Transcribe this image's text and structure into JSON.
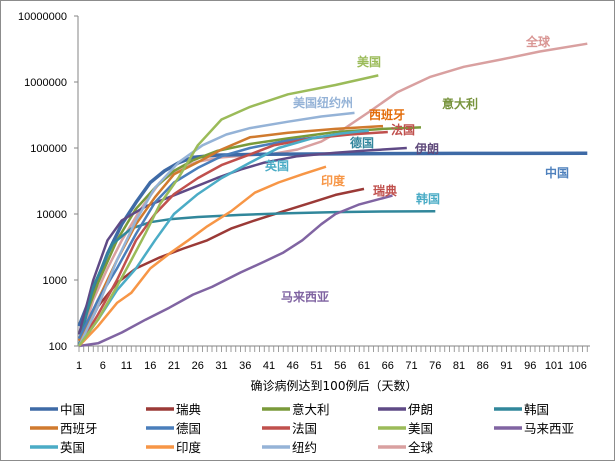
{
  "chart_data": {
    "type": "line",
    "title": "",
    "xlabel": "确诊病例达到100例后（天数）",
    "ylabel": "",
    "yscale": "log",
    "ylim": [
      100,
      10000000
    ],
    "xlim": [
      1,
      108
    ],
    "y_ticks": [
      "100",
      "1000",
      "10000",
      "100000",
      "1000000",
      "10000000"
    ],
    "y_tick_values": [
      100,
      1000,
      10000,
      100000,
      1000000,
      10000000
    ],
    "x_ticks": [
      "1",
      "6",
      "11",
      "16",
      "21",
      "26",
      "31",
      "36",
      "41",
      "46",
      "51",
      "56",
      "61",
      "66",
      "71",
      "76",
      "81",
      "86",
      "91",
      "96",
      "101",
      "106"
    ],
    "legend_position": "bottom",
    "series": [
      {
        "name": "中国",
        "label": "中国",
        "color": "#3E6AA6",
        "label_color": "#4F81BD",
        "points": [
          [
            1,
            200
          ],
          [
            4,
            700
          ],
          [
            7,
            2500
          ],
          [
            10,
            7000
          ],
          [
            13,
            15000
          ],
          [
            16,
            30000
          ],
          [
            19,
            45000
          ],
          [
            22,
            60000
          ],
          [
            25,
            72000
          ],
          [
            30,
            78000
          ],
          [
            40,
            80500
          ],
          [
            60,
            82000
          ],
          [
            80,
            82800
          ],
          [
            108,
            83000
          ]
        ]
      },
      {
        "name": "瑞典",
        "label": "瑞典",
        "color": "#9B3A37",
        "label_color": "#C0504D",
        "points": [
          [
            1,
            100
          ],
          [
            5,
            400
          ],
          [
            9,
            900
          ],
          [
            13,
            1500
          ],
          [
            18,
            2200
          ],
          [
            23,
            3000
          ],
          [
            28,
            4000
          ],
          [
            33,
            6000
          ],
          [
            38,
            8000
          ],
          [
            44,
            11000
          ],
          [
            50,
            15000
          ],
          [
            55,
            19500
          ],
          [
            61,
            24000
          ]
        ]
      },
      {
        "name": "意大利",
        "label": "意大利",
        "color": "#7A9A3A",
        "label_color": "#77933C",
        "points": [
          [
            1,
            150
          ],
          [
            5,
            900
          ],
          [
            9,
            4000
          ],
          [
            13,
            12000
          ],
          [
            17,
            25000
          ],
          [
            21,
            45000
          ],
          [
            25,
            65000
          ],
          [
            30,
            90000
          ],
          [
            37,
            115000
          ],
          [
            45,
            140000
          ],
          [
            55,
            175000
          ],
          [
            65,
            195000
          ],
          [
            73,
            205000
          ]
        ]
      },
      {
        "name": "伊朗",
        "label": "伊朗",
        "color": "#5F4A86",
        "label_color": "#604A7B",
        "points": [
          [
            1,
            150
          ],
          [
            4,
            1000
          ],
          [
            7,
            4000
          ],
          [
            10,
            8000
          ],
          [
            15,
            13000
          ],
          [
            20,
            18000
          ],
          [
            25,
            25000
          ],
          [
            30,
            35000
          ],
          [
            35,
            47000
          ],
          [
            40,
            60000
          ],
          [
            47,
            75000
          ],
          [
            55,
            85000
          ],
          [
            62,
            92000
          ],
          [
            70,
            100000
          ]
        ]
      },
      {
        "name": "韩国",
        "label": "韩国",
        "color": "#31879B",
        "label_color": "#4BACC6",
        "points": [
          [
            1,
            100
          ],
          [
            4,
            800
          ],
          [
            8,
            3500
          ],
          [
            12,
            6000
          ],
          [
            16,
            7500
          ],
          [
            20,
            8300
          ],
          [
            26,
            9000
          ],
          [
            35,
            9700
          ],
          [
            45,
            10300
          ],
          [
            55,
            10700
          ],
          [
            65,
            10900
          ],
          [
            76,
            11000
          ]
        ]
      },
      {
        "name": "西班牙",
        "label": "西班牙",
        "color": "#D07A2E",
        "label_color": "#E36C09",
        "points": [
          [
            1,
            120
          ],
          [
            5,
            500
          ],
          [
            9,
            2000
          ],
          [
            13,
            7000
          ],
          [
            17,
            18000
          ],
          [
            21,
            40000
          ],
          [
            26,
            61000
          ],
          [
            31,
            95000
          ],
          [
            37,
            145000
          ],
          [
            45,
            170000
          ],
          [
            55,
            195000
          ],
          [
            65,
            215000
          ]
        ]
      },
      {
        "name": "德国",
        "label": "德国",
        "color": "#4A7EBB",
        "label_color": "#31859C",
        "points": [
          [
            1,
            130
          ],
          [
            5,
            500
          ],
          [
            9,
            1500
          ],
          [
            13,
            5000
          ],
          [
            17,
            15000
          ],
          [
            21,
            30000
          ],
          [
            26,
            50000
          ],
          [
            31,
            75000
          ],
          [
            37,
            100000
          ],
          [
            45,
            130000
          ],
          [
            55,
            155000
          ],
          [
            62,
            170000
          ]
        ]
      },
      {
        "name": "法国",
        "label": "法国",
        "color": "#C0504D",
        "label_color": "#C0504D",
        "points": [
          [
            1,
            100
          ],
          [
            5,
            300
          ],
          [
            9,
            1000
          ],
          [
            13,
            4000
          ],
          [
            17,
            10000
          ],
          [
            21,
            20000
          ],
          [
            26,
            35000
          ],
          [
            31,
            55000
          ],
          [
            37,
            80000
          ],
          [
            42,
            110000
          ],
          [
            50,
            140000
          ],
          [
            58,
            160000
          ],
          [
            66,
            175000
          ]
        ]
      },
      {
        "name": "美国",
        "label": "美国",
        "color": "#9BBB59",
        "label_color": "#9BBB59",
        "points": [
          [
            1,
            100
          ],
          [
            5,
            250
          ],
          [
            9,
            800
          ],
          [
            12,
            2000
          ],
          [
            15,
            5100
          ],
          [
            18,
            14000
          ],
          [
            22,
            36000
          ],
          [
            26,
            110000
          ],
          [
            31,
            270000
          ],
          [
            37,
            420000
          ],
          [
            45,
            650000
          ],
          [
            55,
            900000
          ],
          [
            64,
            1260000
          ]
        ]
      },
      {
        "name": "马来西亚",
        "label": "马来西亚",
        "color": "#8064A2",
        "label_color": "#8064A2",
        "points": [
          [
            1,
            100
          ],
          [
            5,
            110
          ],
          [
            10,
            160
          ],
          [
            15,
            250
          ],
          [
            20,
            380
          ],
          [
            25,
            600
          ],
          [
            29,
            785
          ],
          [
            35,
            1300
          ],
          [
            40,
            1900
          ],
          [
            44,
            2600
          ],
          [
            48,
            4000
          ],
          [
            52,
            7000
          ],
          [
            55,
            10000
          ],
          [
            60,
            14000
          ],
          [
            67,
            19000
          ]
        ]
      },
      {
        "name": "英国",
        "label": "英国",
        "color": "#4BACC6",
        "label_color": "#4BACC6",
        "points": [
          [
            1,
            100
          ],
          [
            5,
            250
          ],
          [
            9,
            700
          ],
          [
            13,
            1500
          ],
          [
            17,
            4000
          ],
          [
            21,
            10000
          ],
          [
            26,
            20000
          ],
          [
            31,
            35000
          ],
          [
            37,
            60000
          ],
          [
            43,
            100000
          ],
          [
            50,
            140000
          ],
          [
            56,
            165000
          ],
          [
            62,
            185000
          ]
        ]
      },
      {
        "name": "印度",
        "label": "印度",
        "color": "#F79646",
        "label_color": "#F79646",
        "points": [
          [
            1,
            100
          ],
          [
            5,
            200
          ],
          [
            9,
            450
          ],
          [
            12,
            640
          ],
          [
            16,
            1500
          ],
          [
            20,
            2500
          ],
          [
            24,
            4000
          ],
          [
            28,
            6500
          ],
          [
            33,
            11000
          ],
          [
            38,
            21000
          ],
          [
            43,
            30000
          ],
          [
            48,
            40000
          ],
          [
            53,
            52000
          ]
        ]
      },
      {
        "name": "纽约",
        "label": "美国纽约州",
        "color": "#95B3D7",
        "label_color": "#95B3D7",
        "points": [
          [
            1,
            100
          ],
          [
            5,
            400
          ],
          [
            9,
            2000
          ],
          [
            13,
            8000
          ],
          [
            17,
            25000
          ],
          [
            22,
            61000
          ],
          [
            27,
            110000
          ],
          [
            32,
            160000
          ],
          [
            37,
            200000
          ],
          [
            45,
            250000
          ],
          [
            52,
            300000
          ],
          [
            59,
            340000
          ]
        ]
      },
      {
        "name": "全球",
        "label": "全球",
        "color": "#D9A0A0",
        "label_color": "#D99694",
        "points": [
          [
            1,
            100
          ],
          [
            4,
            500
          ],
          [
            7,
            1500
          ],
          [
            10,
            4000
          ],
          [
            14,
            12000
          ],
          [
            18,
            30000
          ],
          [
            22,
            48000
          ],
          [
            26,
            62000
          ],
          [
            31,
            72000
          ],
          [
            37,
            78000
          ],
          [
            42,
            82000
          ],
          [
            47,
            95000
          ],
          [
            52,
            125000
          ],
          [
            57,
            200000
          ],
          [
            62,
            350000
          ],
          [
            68,
            700000
          ],
          [
            75,
            1200000
          ],
          [
            82,
            1700000
          ],
          [
            90,
            2200000
          ],
          [
            98,
            2900000
          ],
          [
            108,
            3800000
          ]
        ]
      }
    ]
  }
}
